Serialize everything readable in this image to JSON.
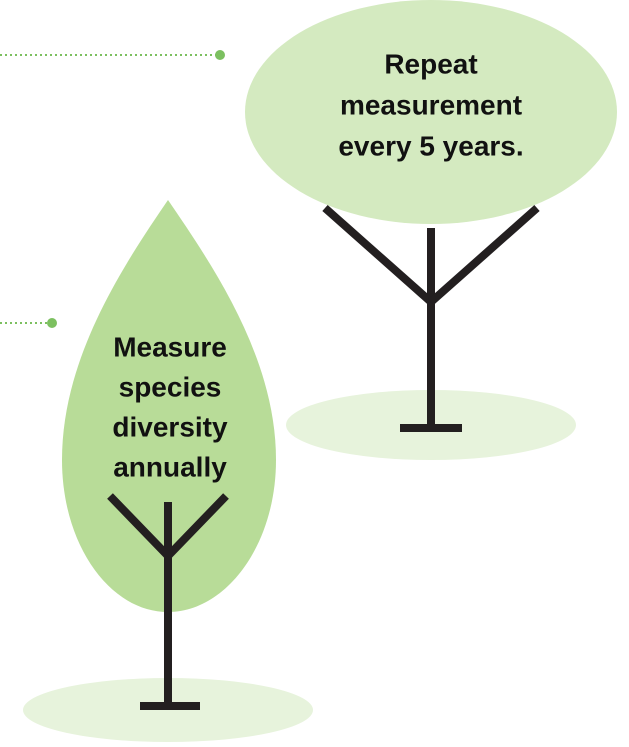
{
  "nodes": [
    {
      "lines": [
        "Repeat",
        "measurement",
        "every 5 years."
      ]
    },
    {
      "lines": [
        "Measure",
        "species",
        "diversity",
        "annually"
      ]
    }
  ]
}
